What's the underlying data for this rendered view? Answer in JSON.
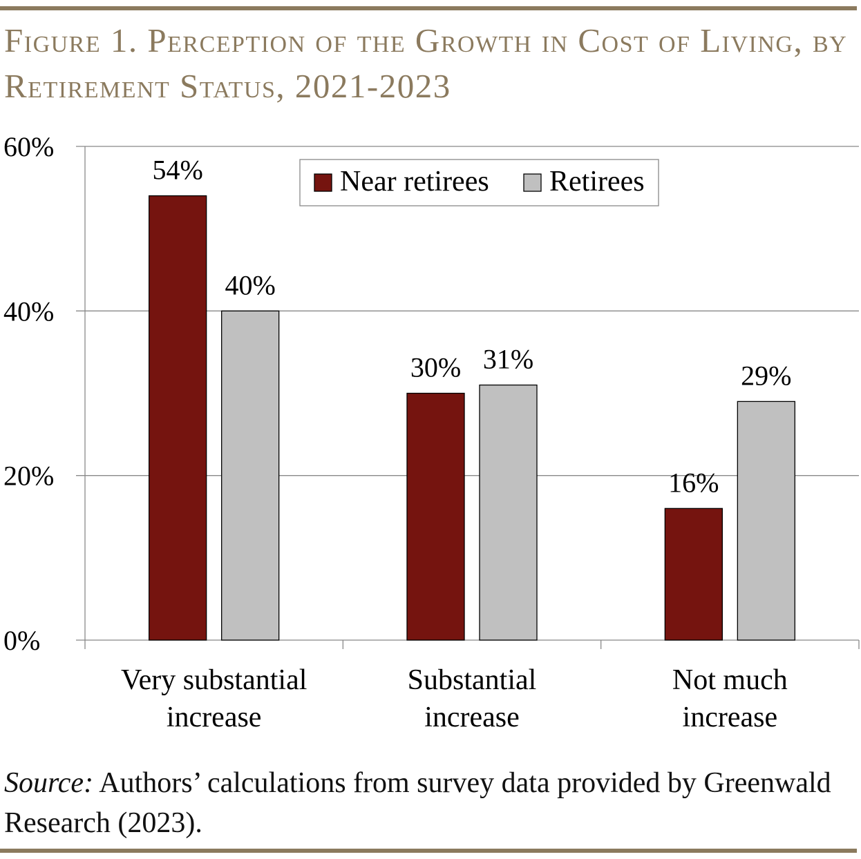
{
  "title": "Figure 1. Perception of the Growth in Cost of Living, by Retirement Status, 2021-2023",
  "source": {
    "label": "Source:",
    "text": " Authors’ calculations from survey data provided by Greenwald Research (2023)."
  },
  "colors": {
    "rule": "#8b7a5e",
    "near_retirees": "#75140f",
    "retirees": "#c0c0c0"
  },
  "chart_data": {
    "type": "bar",
    "categories": [
      [
        "Very substantial",
        "increase"
      ],
      [
        "Substantial",
        "increase"
      ],
      [
        "Not much",
        "increase"
      ]
    ],
    "series": [
      {
        "name": "Near retirees",
        "values": [
          54,
          30,
          16
        ],
        "labels": [
          "54%",
          "30%",
          "16%"
        ]
      },
      {
        "name": "Retirees",
        "values": [
          40,
          31,
          29
        ],
        "labels": [
          "40%",
          "31%",
          "29%"
        ]
      }
    ],
    "ylim": [
      0,
      60
    ],
    "yticks": [
      0,
      20,
      40,
      60
    ],
    "ytick_labels": [
      "0%",
      "20%",
      "40%",
      "60%"
    ],
    "grid": true,
    "legend": "top-center"
  }
}
